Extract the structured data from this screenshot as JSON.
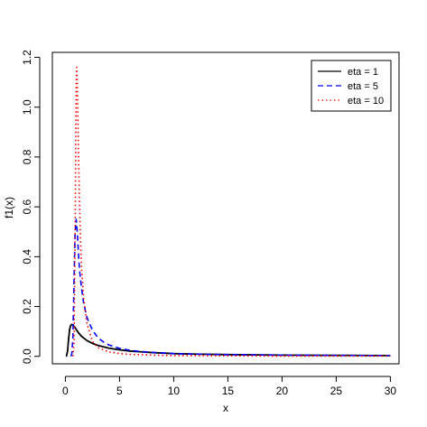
{
  "chart_data": {
    "type": "line",
    "xlabel": "x",
    "ylabel": "f1(x)",
    "xlim": [
      -1.2,
      30.8
    ],
    "ylim": [
      -0.03,
      1.22
    ],
    "xticks": [
      0,
      5,
      10,
      15,
      20,
      25,
      30
    ],
    "yticks": [
      0.0,
      0.2,
      0.4,
      0.6,
      0.8,
      1.0,
      1.2
    ],
    "xtick_labels": [
      "0",
      "5",
      "10",
      "15",
      "20",
      "25",
      "30"
    ],
    "ytick_labels": [
      "0.0",
      "0.2",
      "0.4",
      "0.6",
      "0.8",
      "1.0",
      "1.2"
    ],
    "grid": false,
    "legend_position": "top-right",
    "series": [
      {
        "name": "eta = 1",
        "color": "#000000",
        "style": "solid",
        "x": [
          0.05,
          0.1,
          0.2,
          0.3,
          0.4,
          0.5,
          0.6,
          0.7,
          0.8,
          0.9,
          1.0,
          1.2,
          1.5,
          2.0,
          2.5,
          3.0,
          4.0,
          5.0,
          6.0,
          7.0,
          8.0,
          10.0,
          12.0,
          15.0,
          20.0,
          25.0,
          30.0
        ],
        "y": [
          0.0,
          0.001,
          0.02,
          0.07,
          0.11,
          0.125,
          0.128,
          0.125,
          0.12,
          0.115,
          0.108,
          0.095,
          0.08,
          0.063,
          0.052,
          0.044,
          0.033,
          0.026,
          0.021,
          0.018,
          0.015,
          0.011,
          0.009,
          0.007,
          0.005,
          0.004,
          0.003
        ]
      },
      {
        "name": "eta = 5",
        "color": "#0000ff",
        "style": "dashed",
        "x": [
          0.5,
          0.6,
          0.7,
          0.8,
          0.9,
          1.0,
          1.1,
          1.2,
          1.3,
          1.5,
          1.7,
          2.0,
          2.5,
          3.0,
          3.5,
          4.0,
          5.0,
          6.0,
          7.0,
          8.0,
          10.0,
          12.0,
          15.0,
          20.0,
          25.0,
          30.0
        ],
        "y": [
          0.0,
          0.01,
          0.08,
          0.3,
          0.5,
          0.55,
          0.5,
          0.42,
          0.35,
          0.27,
          0.21,
          0.155,
          0.105,
          0.075,
          0.058,
          0.046,
          0.032,
          0.024,
          0.019,
          0.016,
          0.011,
          0.009,
          0.007,
          0.005,
          0.004,
          0.003
        ]
      },
      {
        "name": "eta = 10",
        "color": "#ff0000",
        "style": "dotted",
        "x": [
          0.7,
          0.8,
          0.9,
          1.0,
          1.05,
          1.1,
          1.2,
          1.3,
          1.4,
          1.5,
          1.7,
          2.0,
          2.5,
          3.0,
          4.0,
          5.0,
          6.0,
          8.0,
          10.0,
          15.0,
          20.0,
          25.0,
          30.0
        ],
        "y": [
          0.0,
          0.05,
          0.5,
          1.1,
          1.16,
          1.1,
          0.85,
          0.62,
          0.46,
          0.35,
          0.23,
          0.13,
          0.06,
          0.035,
          0.018,
          0.011,
          0.008,
          0.005,
          0.003,
          0.002,
          0.001,
          0.001,
          0.001
        ]
      }
    ]
  }
}
